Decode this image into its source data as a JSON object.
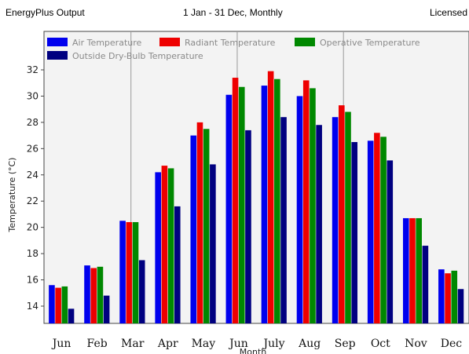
{
  "header": {
    "left": "EnergyPlus Output",
    "center": "1 Jan - 31 Dec, Monthly",
    "right": "Licensed"
  },
  "chart_data": {
    "type": "bar",
    "ylabel": "Temperature (°C)",
    "xlabel": "Month",
    "ylim": [
      13,
      33
    ],
    "yticks": [
      14,
      16,
      18,
      20,
      22,
      24,
      26,
      28,
      30,
      32
    ],
    "grid": "vertical",
    "legend_position": "top",
    "categories": [
      "Jun",
      "Feb",
      "Mar",
      "Apr",
      "May",
      "Jun",
      "July",
      "Aug",
      "Sep",
      "Oct",
      "Nov",
      "Dec"
    ],
    "series": [
      {
        "name": "Air Temperature",
        "color": "#0000ee",
        "values": [
          15.6,
          17.1,
          20.5,
          24.2,
          27.0,
          30.1,
          30.8,
          30.0,
          28.4,
          26.6,
          20.7,
          16.8
        ]
      },
      {
        "name": "Radiant Temperature",
        "color": "#ee0000",
        "values": [
          15.4,
          16.9,
          20.4,
          24.7,
          28.0,
          31.4,
          31.9,
          31.2,
          29.3,
          27.2,
          20.7,
          16.5
        ]
      },
      {
        "name": "Operative Temperature",
        "color": "#008800",
        "values": [
          15.5,
          17.0,
          20.4,
          24.5,
          27.5,
          30.7,
          31.3,
          30.6,
          28.8,
          26.9,
          20.7,
          16.7
        ]
      },
      {
        "name": "Outside Dry-Bulb Temperature",
        "color": "#000080",
        "values": [
          13.8,
          14.8,
          17.5,
          21.6,
          24.8,
          27.4,
          28.4,
          27.8,
          26.5,
          25.1,
          18.6,
          15.3
        ]
      }
    ]
  }
}
